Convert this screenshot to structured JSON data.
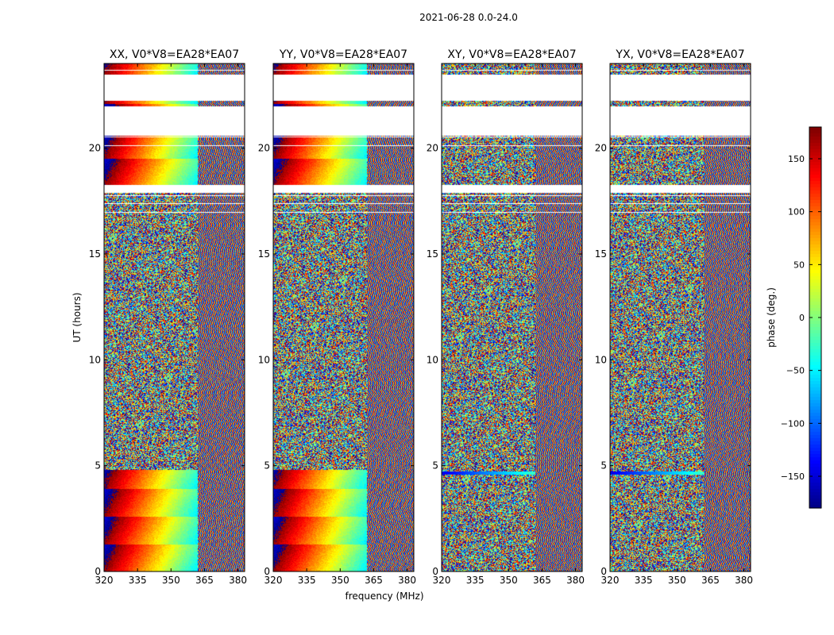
{
  "figure": {
    "suptitle": "2021-06-28 0.0-24.0",
    "xlabel": "frequency (MHz)",
    "ylabel": "UT (hours)"
  },
  "colorbar": {
    "label": "phase (deg.)",
    "range": [
      -180,
      180
    ],
    "ticks": [
      150,
      100,
      50,
      0,
      -50,
      -100,
      -150
    ],
    "tick_labels": [
      "150",
      "100",
      "50",
      "0",
      "−50",
      "−100",
      "−150"
    ],
    "colormap": "jet",
    "colors": [
      "#00007f",
      "#0000ff",
      "#007fff",
      "#00ffff",
      "#7fff7f",
      "#ffff00",
      "#ff7f00",
      "#ff0000",
      "#7f0000"
    ]
  },
  "chart_data": [
    {
      "type": "heatmap",
      "title": "XX, V0*V8=EA28*EA07",
      "x_range": [
        320,
        383
      ],
      "y_range": [
        0,
        24
      ],
      "xticks": [
        320,
        335,
        350,
        365,
        380
      ],
      "yticks": [
        0,
        5,
        10,
        15,
        20
      ],
      "value_range": [
        -180,
        180
      ],
      "coherent_phase_gradient": true,
      "coherent_freq_max": 362
    },
    {
      "type": "heatmap",
      "title": "YY, V0*V8=EA28*EA07",
      "x_range": [
        320,
        383
      ],
      "y_range": [
        0,
        24
      ],
      "xticks": [
        320,
        335,
        350,
        365,
        380
      ],
      "yticks": [
        0,
        5,
        10,
        15,
        20
      ],
      "value_range": [
        -180,
        180
      ],
      "coherent_phase_gradient": true,
      "coherent_freq_max": 362
    },
    {
      "type": "heatmap",
      "title": "XY, V0*V8=EA28*EA07",
      "x_range": [
        320,
        383
      ],
      "y_range": [
        0,
        24
      ],
      "xticks": [
        320,
        335,
        350,
        365,
        380
      ],
      "yticks": [
        0,
        5,
        10,
        15,
        20
      ],
      "value_range": [
        -180,
        180
      ],
      "coherent_phase_gradient": false,
      "coherent_freq_max": 362
    },
    {
      "type": "heatmap",
      "title": "YX, V0*V8=EA28*EA07",
      "x_range": [
        320,
        383
      ],
      "y_range": [
        0,
        24
      ],
      "xticks": [
        320,
        335,
        350,
        365,
        380
      ],
      "yticks": [
        0,
        5,
        10,
        15,
        20
      ],
      "value_range": [
        -180,
        180
      ],
      "coherent_phase_gradient": false,
      "coherent_freq_max": 362
    }
  ]
}
